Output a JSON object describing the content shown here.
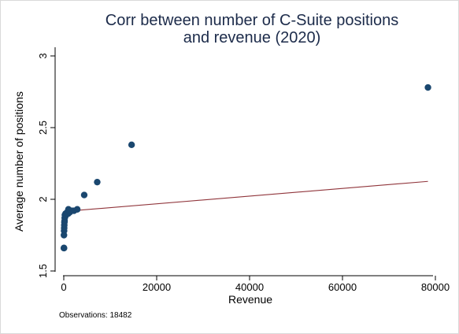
{
  "chart_data": {
    "type": "scatter",
    "title": [
      "Corr between number of C-Suite positions",
      "and revenue (2020)"
    ],
    "xlabel": "Revenue",
    "ylabel": "Average number of positions",
    "xlim": [
      -1500,
      81000
    ],
    "ylim": [
      1.5,
      3.0
    ],
    "xticks": [
      0,
      20000,
      40000,
      60000,
      80000
    ],
    "xtick_labels": [
      "0",
      "20000",
      "40000",
      "60000",
      "80000"
    ],
    "yticks": [
      1.5,
      2.0,
      2.5,
      3.0
    ],
    "ytick_labels": [
      "1.5",
      "2",
      "2.5",
      "3"
    ],
    "grid": false,
    "marker_color": "#1a476f",
    "fit_color": "#90353b",
    "points": [
      {
        "x": 20,
        "y": 1.66
      },
      {
        "x": 60,
        "y": 1.66
      },
      {
        "x": 40,
        "y": 1.75
      },
      {
        "x": 70,
        "y": 1.78
      },
      {
        "x": 90,
        "y": 1.8
      },
      {
        "x": 110,
        "y": 1.82
      },
      {
        "x": 140,
        "y": 1.84
      },
      {
        "x": 170,
        "y": 1.85
      },
      {
        "x": 200,
        "y": 1.87
      },
      {
        "x": 240,
        "y": 1.89
      },
      {
        "x": 300,
        "y": 1.88
      },
      {
        "x": 380,
        "y": 1.9
      },
      {
        "x": 480,
        "y": 1.89
      },
      {
        "x": 600,
        "y": 1.9
      },
      {
        "x": 750,
        "y": 1.91
      },
      {
        "x": 950,
        "y": 1.9
      },
      {
        "x": 1000,
        "y": 1.93
      },
      {
        "x": 1300,
        "y": 1.91
      },
      {
        "x": 1700,
        "y": 1.92
      },
      {
        "x": 2200,
        "y": 1.92
      },
      {
        "x": 2900,
        "y": 1.93
      },
      {
        "x": 4400,
        "y": 2.03
      },
      {
        "x": 7200,
        "y": 2.12
      },
      {
        "x": 14600,
        "y": 2.38
      },
      {
        "x": 78400,
        "y": 2.78
      }
    ],
    "fit_line": {
      "x": [
        0,
        78400
      ],
      "y": [
        1.915,
        2.125
      ]
    },
    "note": "Observations: 18482"
  }
}
